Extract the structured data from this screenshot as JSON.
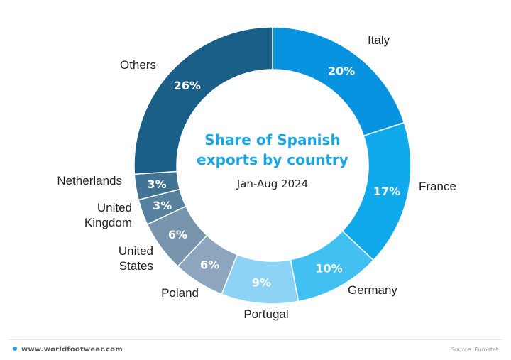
{
  "chart_data": {
    "type": "pie",
    "title": "Share of Spanish exports by country",
    "subtitle": "Jan-Aug 2024",
    "series": [
      {
        "label": "Italy",
        "value": 20,
        "pct": "20%",
        "color": "#0793e0"
      },
      {
        "label": "France",
        "value": 17,
        "pct": "17%",
        "color": "#10a9ec"
      },
      {
        "label": "Germany",
        "value": 10,
        "pct": "10%",
        "color": "#42c0f2"
      },
      {
        "label": "Portugal",
        "value": 9,
        "pct": "9%",
        "color": "#8cd3f5"
      },
      {
        "label": "Poland",
        "value": 6,
        "pct": "6%",
        "color": "#8da6bd"
      },
      {
        "label": "United States",
        "value": 6,
        "pct": "6%",
        "color": "#7895ad"
      },
      {
        "label": "United Kingdom",
        "value": 3,
        "pct": "3%",
        "color": "#55809e"
      },
      {
        "label": "Netherlands",
        "value": 3,
        "pct": "3%",
        "color": "#3f7293"
      },
      {
        "label": "Others",
        "value": 26,
        "pct": "26%",
        "color": "#195f88"
      }
    ],
    "title_color": "#1aa6e6"
  },
  "footer": {
    "site": "www.worldfootwear.com",
    "source": "Source: Eurostat",
    "dot_color": "#1aa6e6"
  }
}
